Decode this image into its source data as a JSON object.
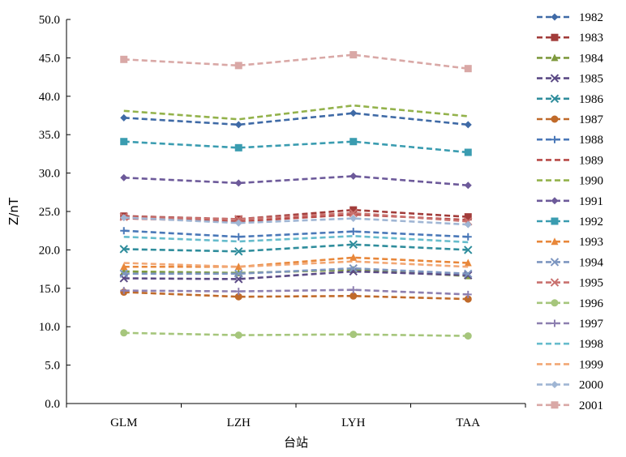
{
  "chart_data": {
    "type": "line",
    "title": "",
    "xlabel": "台站",
    "ylabel": "Z/nT",
    "categories": [
      "GLM",
      "LZH",
      "LYH",
      "TAA"
    ],
    "ylim": [
      0,
      50
    ],
    "yticks": [
      "0.0",
      "5.0",
      "10.0",
      "15.0",
      "20.0",
      "25.0",
      "30.0",
      "35.0",
      "40.0",
      "45.0",
      "50.0"
    ],
    "grid": false,
    "legend_position": "right",
    "series": [
      {
        "name": "1982",
        "color": "#3f6aa6",
        "marker": "diamond",
        "values": [
          37.2,
          36.3,
          37.8,
          36.3
        ]
      },
      {
        "name": "1983",
        "color": "#a23c3a",
        "marker": "square",
        "values": [
          24.4,
          24.0,
          25.2,
          24.3
        ]
      },
      {
        "name": "1984",
        "color": "#7f9a3e",
        "marker": "triangle",
        "values": [
          17.2,
          17.0,
          17.4,
          16.6
        ]
      },
      {
        "name": "1985",
        "color": "#5b4a85",
        "marker": "x",
        "values": [
          16.3,
          16.2,
          17.2,
          16.7
        ]
      },
      {
        "name": "1986",
        "color": "#2f8d9c",
        "marker": "x",
        "values": [
          20.1,
          19.8,
          20.7,
          20.0
        ]
      },
      {
        "name": "1987",
        "color": "#c06a2a",
        "marker": "circle",
        "values": [
          14.5,
          13.9,
          14.0,
          13.6
        ]
      },
      {
        "name": "1988",
        "color": "#4a78b8",
        "marker": "plus",
        "values": [
          22.5,
          21.7,
          22.4,
          21.7
        ]
      },
      {
        "name": "1989",
        "color": "#b84a47",
        "marker": "none",
        "values": [
          24.1,
          23.7,
          24.6,
          23.9
        ]
      },
      {
        "name": "1990",
        "color": "#93b24b",
        "marker": "none",
        "values": [
          38.1,
          37.0,
          38.8,
          37.4
        ]
      },
      {
        "name": "1991",
        "color": "#6d5a9a",
        "marker": "diamond",
        "values": [
          29.4,
          28.7,
          29.6,
          28.4
        ]
      },
      {
        "name": "1992",
        "color": "#3a9cb0",
        "marker": "square",
        "values": [
          34.1,
          33.3,
          34.1,
          32.7
        ]
      },
      {
        "name": "1993",
        "color": "#e8873a",
        "marker": "triangle",
        "values": [
          17.8,
          17.8,
          19.0,
          18.3
        ]
      },
      {
        "name": "1994",
        "color": "#7d96c0",
        "marker": "x",
        "values": [
          16.9,
          16.9,
          17.6,
          16.9
        ]
      },
      {
        "name": "1995",
        "color": "#c9716e",
        "marker": "x",
        "values": [
          24.3,
          24.0,
          24.8,
          23.7
        ]
      },
      {
        "name": "1996",
        "color": "#a6c67c",
        "marker": "circle",
        "values": [
          9.2,
          8.9,
          9.0,
          8.8
        ]
      },
      {
        "name": "1997",
        "color": "#8d7fb0",
        "marker": "plus",
        "values": [
          14.7,
          14.6,
          14.8,
          14.2
        ]
      },
      {
        "name": "1998",
        "color": "#66bccc",
        "marker": "none",
        "values": [
          21.7,
          21.1,
          21.8,
          21.0
        ]
      },
      {
        "name": "1999",
        "color": "#f2a774",
        "marker": "none",
        "values": [
          18.3,
          17.8,
          18.5,
          17.8
        ]
      },
      {
        "name": "2000",
        "color": "#a0b6d4",
        "marker": "diamond",
        "values": [
          24.2,
          23.5,
          24.1,
          23.3
        ]
      },
      {
        "name": "2001",
        "color": "#d9a8a6",
        "marker": "square",
        "values": [
          44.8,
          44.0,
          45.4,
          43.6
        ]
      }
    ]
  }
}
